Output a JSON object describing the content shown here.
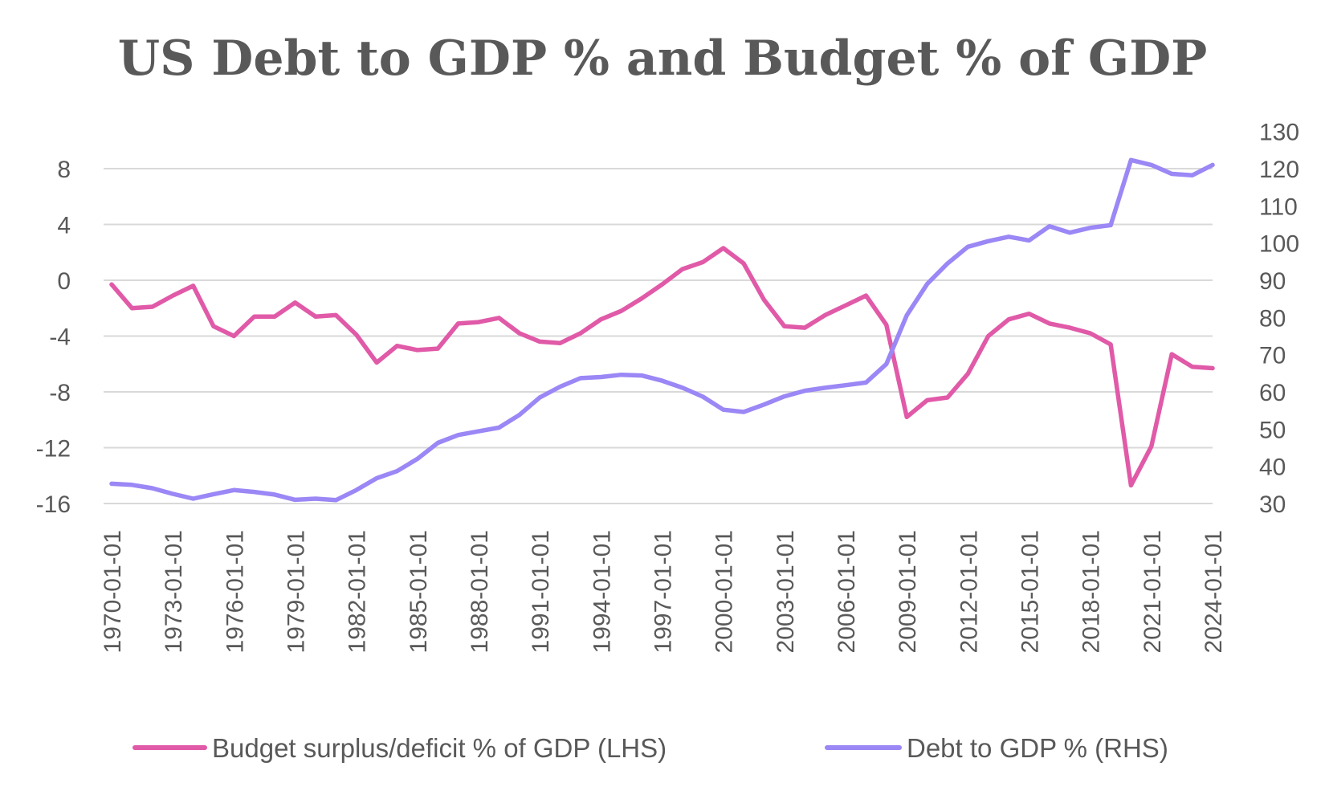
{
  "chart_data": {
    "type": "line",
    "title": "US Debt to GDP % and Budget % of GDP",
    "xlabel": "",
    "ylabel": "",
    "x": [
      "1970-01-01",
      "1971-01-01",
      "1972-01-01",
      "1973-01-01",
      "1974-01-01",
      "1975-01-01",
      "1976-01-01",
      "1977-01-01",
      "1978-01-01",
      "1979-01-01",
      "1980-01-01",
      "1981-01-01",
      "1982-01-01",
      "1983-01-01",
      "1984-01-01",
      "1985-01-01",
      "1986-01-01",
      "1987-01-01",
      "1988-01-01",
      "1989-01-01",
      "1990-01-01",
      "1991-01-01",
      "1992-01-01",
      "1993-01-01",
      "1994-01-01",
      "1995-01-01",
      "1996-01-01",
      "1997-01-01",
      "1998-01-01",
      "1999-01-01",
      "2000-01-01",
      "2001-01-01",
      "2002-01-01",
      "2003-01-01",
      "2004-01-01",
      "2005-01-01",
      "2006-01-01",
      "2007-01-01",
      "2008-01-01",
      "2009-01-01",
      "2010-01-01",
      "2011-01-01",
      "2012-01-01",
      "2013-01-01",
      "2014-01-01",
      "2015-01-01",
      "2016-01-01",
      "2017-01-01",
      "2018-01-01",
      "2019-01-01",
      "2020-01-01",
      "2021-01-01",
      "2022-01-01",
      "2023-01-01",
      "2024-01-01"
    ],
    "x_tick_labels": [
      "1970-01-01",
      "1973-01-01",
      "1976-01-01",
      "1979-01-01",
      "1982-01-01",
      "1985-01-01",
      "1988-01-01",
      "1991-01-01",
      "1994-01-01",
      "1997-01-01",
      "2000-01-01",
      "2003-01-01",
      "2006-01-01",
      "2009-01-01",
      "2012-01-01",
      "2015-01-01",
      "2018-01-01",
      "2021-01-01",
      "2024-01-01"
    ],
    "y_left": {
      "ylim": [
        -16,
        8
      ],
      "ticks": [
        8,
        4,
        0,
        -4,
        -8,
        -12,
        -16
      ]
    },
    "y_right": {
      "ylim": [
        30,
        130
      ],
      "ticks": [
        130,
        120,
        110,
        100,
        90,
        80,
        70,
        60,
        50,
        40,
        30
      ]
    },
    "grid": true,
    "legend_position": "bottom",
    "series": [
      {
        "name": "Budget  surplus/deficit % of GDP (LHS)",
        "axis": "left",
        "color": "#e05aa8",
        "values": [
          -0.3,
          -2.0,
          -1.9,
          -1.1,
          -0.4,
          -3.3,
          -4.0,
          -2.6,
          -2.6,
          -1.6,
          -2.6,
          -2.5,
          -3.9,
          -5.9,
          -4.7,
          -5.0,
          -4.9,
          -3.1,
          -3.0,
          -2.7,
          -3.8,
          -4.4,
          -4.5,
          -3.8,
          -2.8,
          -2.2,
          -1.3,
          -0.3,
          0.8,
          1.3,
          2.3,
          1.2,
          -1.4,
          -3.3,
          -3.4,
          -2.5,
          -1.8,
          -1.1,
          -3.2,
          -9.8,
          -8.6,
          -8.4,
          -6.7,
          -4.0,
          -2.8,
          -2.4,
          -3.1,
          -3.4,
          -3.8,
          -4.6,
          -14.7,
          -11.9,
          -5.3,
          -6.2,
          -6.3
        ]
      },
      {
        "name": "Debt to GDP % (RHS)",
        "axis": "right",
        "color": "#9b87f5",
        "values": [
          35.3,
          35.0,
          34.1,
          32.6,
          31.3,
          32.5,
          33.6,
          33.1,
          32.4,
          31.0,
          31.3,
          30.9,
          33.6,
          36.8,
          38.7,
          42.0,
          46.3,
          48.4,
          49.4,
          50.4,
          53.8,
          58.5,
          61.4,
          63.7,
          64.0,
          64.6,
          64.4,
          63.0,
          61.1,
          58.7,
          55.2,
          54.6,
          56.6,
          58.8,
          60.3,
          61.1,
          61.8,
          62.5,
          67.5,
          80.6,
          89.0,
          94.5,
          99.0,
          100.5,
          101.7,
          100.7,
          104.5,
          102.8,
          104.1,
          104.8,
          122.3,
          121.0,
          118.6,
          118.2,
          121.0
        ]
      }
    ]
  },
  "legend": {
    "items": [
      {
        "label": "Budget  surplus/deficit % of GDP (LHS)",
        "color": "#e05aa8"
      },
      {
        "label": "Debt to GDP % (RHS)",
        "color": "#9b87f5"
      }
    ]
  },
  "colors": {
    "gridline": "#d9d9d9",
    "text": "#595959"
  }
}
